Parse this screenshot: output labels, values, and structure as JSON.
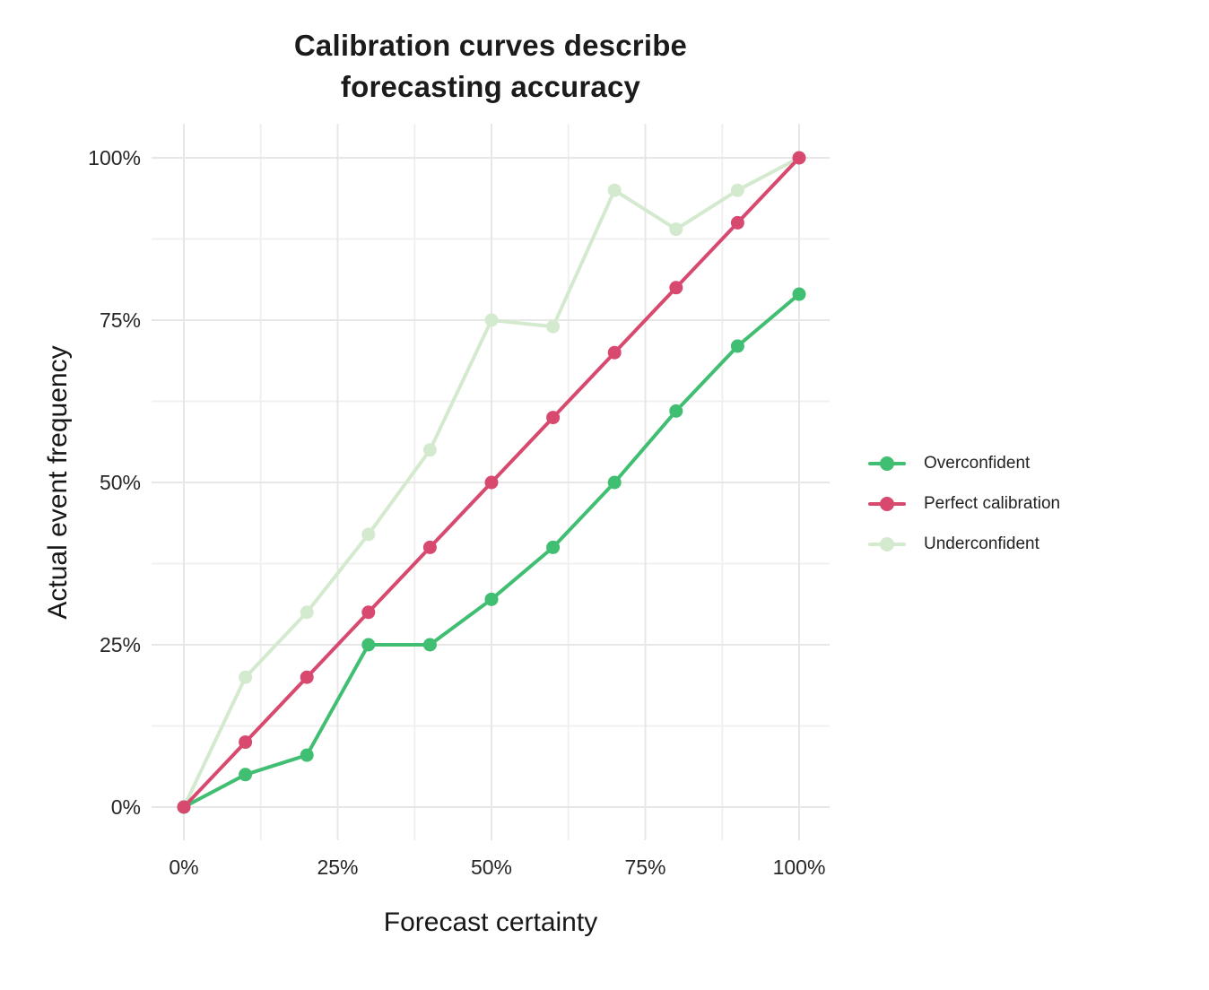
{
  "title": "Calibration curves describe\nforecasting accuracy",
  "chart_data": {
    "type": "line",
    "title": "Calibration curves describe forecasting accuracy",
    "xlabel": "Forecast certainty",
    "ylabel": "Actual event frequency",
    "x": [
      0,
      10,
      20,
      30,
      40,
      50,
      60,
      70,
      80,
      90,
      100
    ],
    "series": [
      {
        "name": "Overconfident",
        "color": "#40BE71",
        "values": [
          0,
          5,
          8,
          25,
          25,
          32,
          40,
          50,
          61,
          71,
          79
        ]
      },
      {
        "name": "Perfect calibration",
        "color": "#D8496F",
        "values": [
          0,
          10,
          20,
          30,
          40,
          50,
          60,
          70,
          80,
          90,
          100
        ]
      },
      {
        "name": "Underconfident",
        "color": "#D4EACF",
        "values": [
          0,
          20,
          30,
          42,
          55,
          75,
          74,
          95,
          89,
          95,
          100
        ]
      }
    ],
    "draw_order": [
      "Underconfident",
      "Overconfident",
      "Perfect calibration"
    ],
    "xlim": [
      0,
      100
    ],
    "ylim": [
      0,
      100
    ],
    "x_axis": {
      "tick_labels": [
        "0%",
        "25%",
        "50%",
        "75%",
        "100%"
      ],
      "tick_values": [
        0,
        25,
        50,
        75,
        100
      ],
      "minor_values": [
        12.5,
        37.5,
        62.5,
        87.5
      ]
    },
    "y_axis": {
      "tick_labels": [
        "0%",
        "25%",
        "50%",
        "75%",
        "100%"
      ],
      "tick_values": [
        0,
        25,
        50,
        75,
        100
      ],
      "minor_values": [
        12.5,
        37.5,
        62.5,
        87.5
      ]
    },
    "grid": true,
    "legend_position": "right",
    "legend_labels": [
      "Overconfident",
      "Perfect calibration",
      "Underconfident"
    ]
  },
  "colors": {
    "background": "#ffffff",
    "grid_major": "#e7e7e7",
    "grid_minor": "#f0f0f0",
    "title_text": "#1b1b1b",
    "axis_text": "#262626"
  }
}
